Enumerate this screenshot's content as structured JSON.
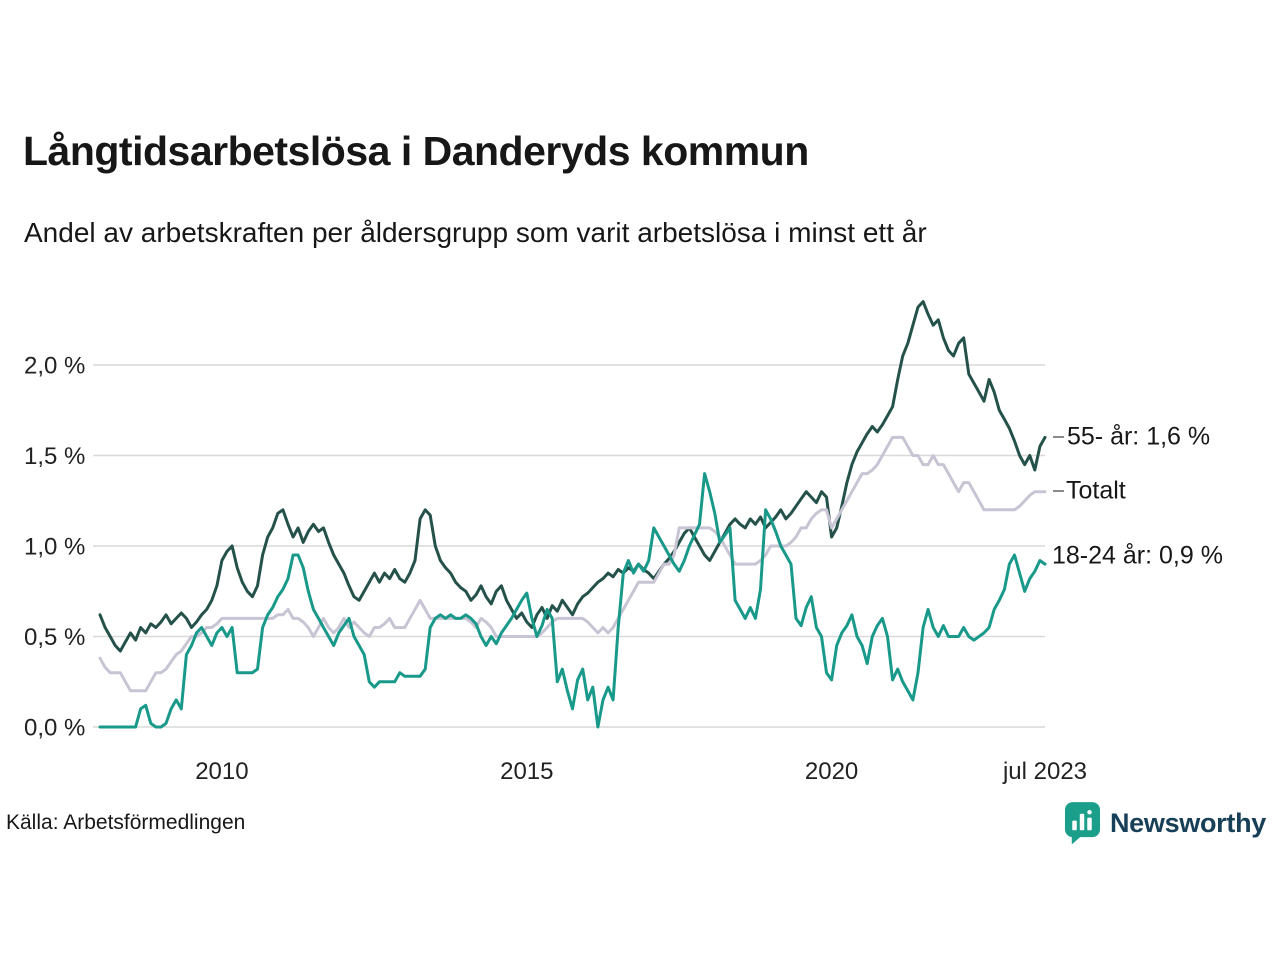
{
  "header": {
    "title": "Långtidsarbetslösa i Danderyds kommun",
    "subtitle": "Andel av arbetskraften per åldersgrupp som varit arbetslösa i minst ett år"
  },
  "chart_data": {
    "type": "line",
    "title": "Långtidsarbetslösa i Danderyds kommun",
    "xlabel": "",
    "ylabel": "",
    "unit": "%",
    "grid": "horizontal",
    "legend_position": "right-annotations",
    "x_domain": [
      2008,
      2023.5
    ],
    "x_step_months": 1,
    "ylim": [
      0,
      2.4
    ],
    "yticks": [
      {
        "value": 0.0,
        "label": "0,0 %"
      },
      {
        "value": 0.5,
        "label": "0,5 %"
      },
      {
        "value": 1.0,
        "label": "1,0 %"
      },
      {
        "value": 1.5,
        "label": "1,5 %"
      },
      {
        "value": 2.0,
        "label": "2,0 %"
      }
    ],
    "xticks": [
      {
        "value": 2010,
        "label": "2010"
      },
      {
        "value": 2015,
        "label": "2015"
      },
      {
        "value": 2020,
        "label": "2020"
      },
      {
        "value": 2023.5,
        "label": "jul 2023"
      }
    ],
    "series": [
      {
        "id": "55-ar",
        "name": "55- år",
        "label": "55- år: 1,6 %",
        "color": "#24524a",
        "last_value": 1.6,
        "values": [
          0.62,
          0.55,
          0.5,
          0.45,
          0.42,
          0.47,
          0.52,
          0.48,
          0.55,
          0.52,
          0.57,
          0.55,
          0.58,
          0.62,
          0.57,
          0.6,
          0.63,
          0.6,
          0.55,
          0.58,
          0.62,
          0.65,
          0.7,
          0.78,
          0.92,
          0.97,
          1.0,
          0.88,
          0.8,
          0.75,
          0.72,
          0.78,
          0.95,
          1.05,
          1.1,
          1.18,
          1.2,
          1.12,
          1.05,
          1.1,
          1.02,
          1.08,
          1.12,
          1.08,
          1.1,
          1.02,
          0.95,
          0.9,
          0.85,
          0.78,
          0.72,
          0.7,
          0.75,
          0.8,
          0.85,
          0.8,
          0.85,
          0.82,
          0.87,
          0.82,
          0.8,
          0.85,
          0.92,
          1.15,
          1.2,
          1.17,
          1.0,
          0.92,
          0.88,
          0.85,
          0.8,
          0.77,
          0.75,
          0.7,
          0.73,
          0.78,
          0.72,
          0.68,
          0.75,
          0.78,
          0.7,
          0.65,
          0.6,
          0.63,
          0.58,
          0.55,
          0.62,
          0.66,
          0.6,
          0.67,
          0.64,
          0.7,
          0.66,
          0.62,
          0.68,
          0.72,
          0.74,
          0.77,
          0.8,
          0.82,
          0.85,
          0.83,
          0.87,
          0.85,
          0.88,
          0.86,
          0.9,
          0.87,
          0.85,
          0.82,
          0.86,
          0.9,
          0.93,
          0.97,
          1.02,
          1.07,
          1.1,
          1.05,
          1.0,
          0.95,
          0.92,
          0.97,
          1.02,
          1.07,
          1.12,
          1.15,
          1.12,
          1.1,
          1.15,
          1.12,
          1.16,
          1.1,
          1.13,
          1.16,
          1.2,
          1.15,
          1.18,
          1.22,
          1.26,
          1.3,
          1.27,
          1.24,
          1.3,
          1.27,
          1.05,
          1.1,
          1.22,
          1.35,
          1.45,
          1.52,
          1.57,
          1.62,
          1.66,
          1.63,
          1.67,
          1.72,
          1.77,
          1.92,
          2.05,
          2.12,
          2.22,
          2.32,
          2.35,
          2.28,
          2.22,
          2.25,
          2.15,
          2.08,
          2.05,
          2.12,
          2.15,
          1.95,
          1.9,
          1.85,
          1.8,
          1.92,
          1.85,
          1.75,
          1.7,
          1.65,
          1.58,
          1.5,
          1.45,
          1.5,
          1.42,
          1.55,
          1.6
        ]
      },
      {
        "id": "totalt",
        "name": "Totalt",
        "label": "Totalt",
        "color": "#c8c4d4",
        "last_value": 1.3,
        "values": [
          0.38,
          0.33,
          0.3,
          0.3,
          0.3,
          0.25,
          0.2,
          0.2,
          0.2,
          0.2,
          0.25,
          0.3,
          0.3,
          0.32,
          0.36,
          0.4,
          0.42,
          0.46,
          0.5,
          0.5,
          0.52,
          0.55,
          0.55,
          0.57,
          0.6,
          0.6,
          0.6,
          0.6,
          0.6,
          0.6,
          0.6,
          0.6,
          0.6,
          0.6,
          0.6,
          0.62,
          0.62,
          0.65,
          0.6,
          0.6,
          0.58,
          0.55,
          0.5,
          0.55,
          0.6,
          0.55,
          0.52,
          0.55,
          0.6,
          0.55,
          0.58,
          0.55,
          0.52,
          0.5,
          0.55,
          0.55,
          0.57,
          0.6,
          0.55,
          0.55,
          0.55,
          0.6,
          0.65,
          0.7,
          0.65,
          0.6,
          0.6,
          0.6,
          0.6,
          0.6,
          0.6,
          0.6,
          0.6,
          0.58,
          0.55,
          0.6,
          0.58,
          0.55,
          0.5,
          0.5,
          0.5,
          0.5,
          0.5,
          0.5,
          0.5,
          0.5,
          0.5,
          0.52,
          0.55,
          0.58,
          0.6,
          0.6,
          0.6,
          0.6,
          0.6,
          0.6,
          0.58,
          0.55,
          0.52,
          0.55,
          0.52,
          0.55,
          0.6,
          0.65,
          0.7,
          0.75,
          0.8,
          0.8,
          0.8,
          0.8,
          0.85,
          0.9,
          0.9,
          0.95,
          1.1,
          1.1,
          1.1,
          1.1,
          1.1,
          1.1,
          1.1,
          1.08,
          1.05,
          1.0,
          0.95,
          0.9,
          0.9,
          0.9,
          0.9,
          0.9,
          0.92,
          0.95,
          1.0,
          1.0,
          1.0,
          1.0,
          1.02,
          1.05,
          1.1,
          1.1,
          1.15,
          1.18,
          1.2,
          1.2,
          1.1,
          1.15,
          1.2,
          1.25,
          1.3,
          1.35,
          1.4,
          1.4,
          1.42,
          1.45,
          1.5,
          1.55,
          1.6,
          1.6,
          1.6,
          1.55,
          1.5,
          1.5,
          1.45,
          1.45,
          1.5,
          1.45,
          1.45,
          1.4,
          1.35,
          1.3,
          1.35,
          1.35,
          1.3,
          1.25,
          1.2,
          1.2,
          1.2,
          1.2,
          1.2,
          1.2,
          1.2,
          1.22,
          1.25,
          1.28,
          1.3,
          1.3,
          1.3
        ]
      },
      {
        "id": "18-24-ar",
        "name": "18-24 år",
        "label": "18-24 år: 0,9 %",
        "color": "#18998a",
        "last_value": 0.9,
        "values": [
          0.0,
          0.0,
          0.0,
          0.0,
          0.0,
          0.0,
          0.0,
          0.0,
          0.1,
          0.12,
          0.02,
          0.0,
          0.0,
          0.02,
          0.1,
          0.15,
          0.1,
          0.4,
          0.45,
          0.52,
          0.55,
          0.5,
          0.45,
          0.52,
          0.55,
          0.5,
          0.55,
          0.3,
          0.3,
          0.3,
          0.3,
          0.32,
          0.55,
          0.62,
          0.66,
          0.72,
          0.76,
          0.82,
          0.95,
          0.95,
          0.88,
          0.75,
          0.65,
          0.6,
          0.55,
          0.5,
          0.45,
          0.52,
          0.56,
          0.6,
          0.5,
          0.45,
          0.4,
          0.25,
          0.22,
          0.25,
          0.25,
          0.25,
          0.25,
          0.3,
          0.28,
          0.28,
          0.28,
          0.28,
          0.32,
          0.55,
          0.6,
          0.62,
          0.6,
          0.62,
          0.6,
          0.6,
          0.62,
          0.6,
          0.57,
          0.5,
          0.45,
          0.5,
          0.46,
          0.52,
          0.56,
          0.6,
          0.65,
          0.7,
          0.74,
          0.6,
          0.5,
          0.56,
          0.65,
          0.6,
          0.25,
          0.32,
          0.2,
          0.1,
          0.26,
          0.32,
          0.15,
          0.22,
          0.0,
          0.15,
          0.22,
          0.15,
          0.55,
          0.85,
          0.92,
          0.85,
          0.9,
          0.86,
          0.92,
          1.1,
          1.05,
          1.0,
          0.95,
          0.9,
          0.86,
          0.92,
          1.0,
          1.06,
          1.12,
          1.4,
          1.3,
          1.18,
          1.02,
          1.06,
          1.1,
          0.7,
          0.65,
          0.6,
          0.66,
          0.6,
          0.76,
          1.2,
          1.15,
          1.08,
          1.0,
          0.95,
          0.9,
          0.6,
          0.56,
          0.66,
          0.72,
          0.55,
          0.5,
          0.3,
          0.26,
          0.45,
          0.52,
          0.56,
          0.62,
          0.5,
          0.45,
          0.35,
          0.5,
          0.56,
          0.6,
          0.5,
          0.26,
          0.32,
          0.25,
          0.2,
          0.15,
          0.3,
          0.55,
          0.65,
          0.55,
          0.5,
          0.56,
          0.5,
          0.5,
          0.5,
          0.55,
          0.5,
          0.48,
          0.5,
          0.52,
          0.55,
          0.65,
          0.7,
          0.76,
          0.9,
          0.95,
          0.85,
          0.75,
          0.82,
          0.86,
          0.92,
          0.9
        ]
      }
    ]
  },
  "footer": {
    "source": "Källa: Arbetsförmedlingen",
    "brand": "Newsworthy"
  },
  "colors": {
    "accent_dark_green": "#24524a",
    "accent_teal": "#18998a",
    "accent_gray": "#c8c4d4",
    "gridline": "#d9d9d9",
    "brand_navy": "#173f57",
    "brand_teal": "#1b9e8a"
  }
}
